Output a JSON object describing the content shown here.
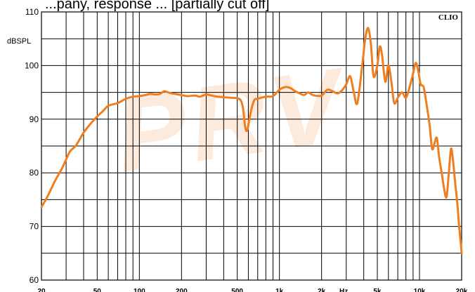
{
  "chart_data": {
    "type": "line",
    "title": "...pany, response ... [partially cut off]",
    "ylabel": "dBSPL",
    "xlabel": "Hz",
    "brand": "CLIO",
    "x_scale": "log",
    "xlim": [
      20,
      20000
    ],
    "ylim": [
      60,
      110
    ],
    "y_ticks": [
      60,
      70,
      80,
      90,
      100,
      110
    ],
    "x_tick_labels": [
      {
        "value": 20,
        "label": "20"
      },
      {
        "value": 50,
        "label": "50"
      },
      {
        "value": 100,
        "label": "100"
      },
      {
        "value": 200,
        "label": "200"
      },
      {
        "value": 500,
        "label": "500"
      },
      {
        "value": 1000,
        "label": "1k"
      },
      {
        "value": 2000,
        "label": "2k"
      },
      {
        "value": 5000,
        "label": "5k"
      },
      {
        "value": 10000,
        "label": "10k"
      },
      {
        "value": 20000,
        "label": "20k"
      }
    ],
    "grid": true,
    "line_color": "#f07d1e",
    "watermark": "PRV",
    "series": [
      {
        "points": [
          [
            20,
            73.6
          ],
          [
            22,
            75.5
          ],
          [
            25,
            78.5
          ],
          [
            28,
            80.8
          ],
          [
            30,
            82.5
          ],
          [
            32,
            84.0
          ],
          [
            35,
            85.0
          ],
          [
            38,
            86.5
          ],
          [
            40,
            87.5
          ],
          [
            45,
            89.2
          ],
          [
            50,
            90.5
          ],
          [
            55,
            91.5
          ],
          [
            60,
            92.5
          ],
          [
            70,
            93.0
          ],
          [
            80,
            93.8
          ],
          [
            90,
            94.2
          ],
          [
            100,
            94.3
          ],
          [
            110,
            94.5
          ],
          [
            120,
            94.7
          ],
          [
            130,
            94.6
          ],
          [
            140,
            94.7
          ],
          [
            150,
            95.2
          ],
          [
            160,
            95.0
          ],
          [
            170,
            94.8
          ],
          [
            180,
            94.7
          ],
          [
            200,
            94.5
          ],
          [
            220,
            94.3
          ],
          [
            250,
            94.4
          ],
          [
            270,
            94.2
          ],
          [
            300,
            94.6
          ],
          [
            330,
            94.4
          ],
          [
            360,
            94.2
          ],
          [
            400,
            94.1
          ],
          [
            450,
            94.0
          ],
          [
            500,
            93.9
          ],
          [
            530,
            93.5
          ],
          [
            550,
            92.0
          ],
          [
            570,
            88.5
          ],
          [
            590,
            88.0
          ],
          [
            620,
            91.0
          ],
          [
            660,
            93.5
          ],
          [
            700,
            93.8
          ],
          [
            800,
            94.2
          ],
          [
            900,
            94.3
          ],
          [
            1000,
            95.5
          ],
          [
            1100,
            96.0
          ],
          [
            1200,
            95.8
          ],
          [
            1300,
            95.2
          ],
          [
            1400,
            94.8
          ],
          [
            1500,
            94.5
          ],
          [
            1600,
            95.0
          ],
          [
            1700,
            94.6
          ],
          [
            1800,
            94.4
          ],
          [
            2000,
            94.4
          ],
          [
            2200,
            95.5
          ],
          [
            2400,
            95.2
          ],
          [
            2600,
            94.8
          ],
          [
            2800,
            95.4
          ],
          [
            3000,
            96.5
          ],
          [
            3200,
            98.0
          ],
          [
            3400,
            95.0
          ],
          [
            3600,
            93.0
          ],
          [
            3900,
            100.0
          ],
          [
            4100,
            105.0
          ],
          [
            4300,
            107.0
          ],
          [
            4500,
            104.0
          ],
          [
            4700,
            98.0
          ],
          [
            5000,
            100.0
          ],
          [
            5200,
            103.5
          ],
          [
            5400,
            102.0
          ],
          [
            5700,
            97.0
          ],
          [
            6000,
            100.0
          ],
          [
            6300,
            97.0
          ],
          [
            6600,
            93.0
          ],
          [
            7000,
            94.0
          ],
          [
            7500,
            95.0
          ],
          [
            8000,
            94.0
          ],
          [
            8500,
            96.0
          ],
          [
            9000,
            98.5
          ],
          [
            9400,
            100.5
          ],
          [
            9800,
            99.0
          ],
          [
            10200,
            96.5
          ],
          [
            10700,
            96.0
          ],
          [
            11200,
            93.0
          ],
          [
            11800,
            89.0
          ],
          [
            12300,
            84.5
          ],
          [
            12800,
            85.5
          ],
          [
            13300,
            86.5
          ],
          [
            13800,
            83.0
          ],
          [
            14400,
            80.0
          ],
          [
            15000,
            77.0
          ],
          [
            15600,
            75.5
          ],
          [
            16200,
            80.0
          ],
          [
            16800,
            84.5
          ],
          [
            17400,
            82.0
          ],
          [
            18000,
            78.0
          ],
          [
            18600,
            74.5
          ],
          [
            19200,
            70.0
          ],
          [
            19700,
            67.0
          ],
          [
            20000,
            65.0
          ]
        ]
      }
    ]
  }
}
